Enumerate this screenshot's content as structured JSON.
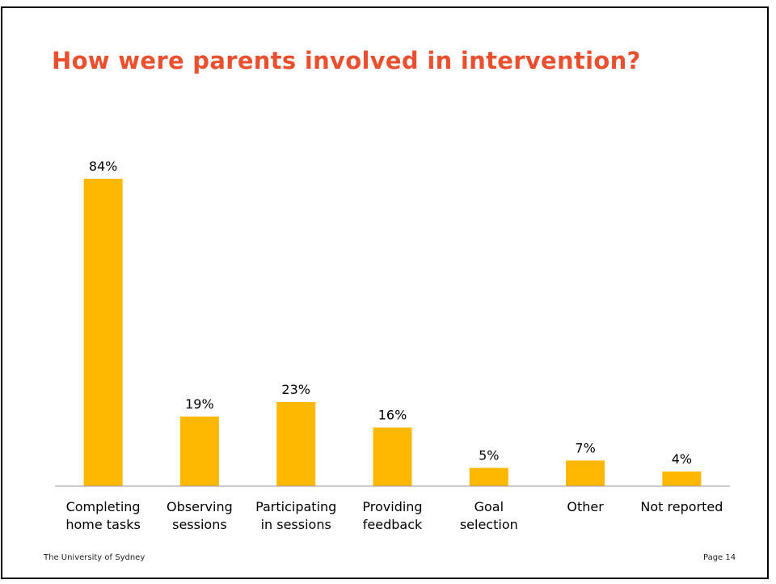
{
  "slide": {
    "title": "How were parents involved in intervention?",
    "footer_left": "The University of Sydney",
    "footer_right": "Page 14"
  },
  "colors": {
    "title": "#E8502F",
    "bar": "#FFB800",
    "axis": "#999999",
    "text": "#000000"
  },
  "chart_data": {
    "type": "bar",
    "title": "",
    "xlabel": "",
    "ylabel": "",
    "ylim": [
      0,
      90
    ],
    "grid": false,
    "legend": "none",
    "categories": [
      [
        "Completing",
        "home tasks"
      ],
      [
        "Observing",
        "sessions"
      ],
      [
        "Participating",
        "in sessions"
      ],
      [
        "Providing",
        "feedback"
      ],
      [
        "Goal",
        "selection"
      ],
      [
        "Other"
      ],
      [
        "Not reported"
      ]
    ],
    "values": [
      84,
      19,
      23,
      16,
      5,
      7,
      4
    ],
    "data_labels": [
      "84%",
      "19%",
      "23%",
      "16%",
      "5%",
      "7%",
      "4%"
    ]
  }
}
